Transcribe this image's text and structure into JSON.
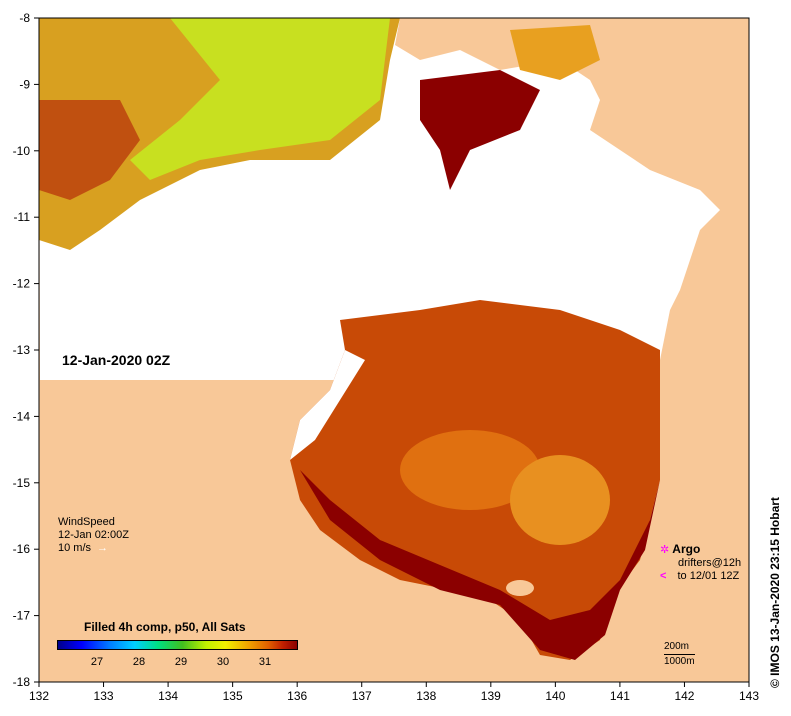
{
  "map": {
    "date_label": "12-Jan-2020 02Z",
    "x_axis_ticks": [
      "132",
      "133",
      "134",
      "135",
      "136",
      "137",
      "138",
      "139",
      "140",
      "141",
      "142",
      "143"
    ],
    "y_axis_ticks": [
      "-8",
      "-9",
      "-10",
      "-11",
      "-12",
      "-13",
      "-14",
      "-15",
      "-16",
      "-17",
      "-18"
    ],
    "colors": {
      "land": "#f8c898",
      "no_data": "#ffffff",
      "warm": "#8b0000",
      "mid": "#e08000",
      "cool": "#c8f000"
    }
  },
  "wind": {
    "title": "WindSpeed",
    "time": "12-Jan 02:00Z",
    "scale_label": "10 m/s",
    "arrow_icon": "right-arrow-icon"
  },
  "argo": {
    "title": "Argo",
    "line1": "drifters@12h",
    "line2": "to 12/01 12Z"
  },
  "scale": {
    "depth1": "200m",
    "depth2": "1000m"
  },
  "colorbar": {
    "title": "Filled 4h comp, p50, All Sats",
    "ticks": [
      "27",
      "28",
      "29",
      "30",
      "31"
    ]
  },
  "credit": "© IMOS 13-Jan-2020 23:15 Hobart"
}
